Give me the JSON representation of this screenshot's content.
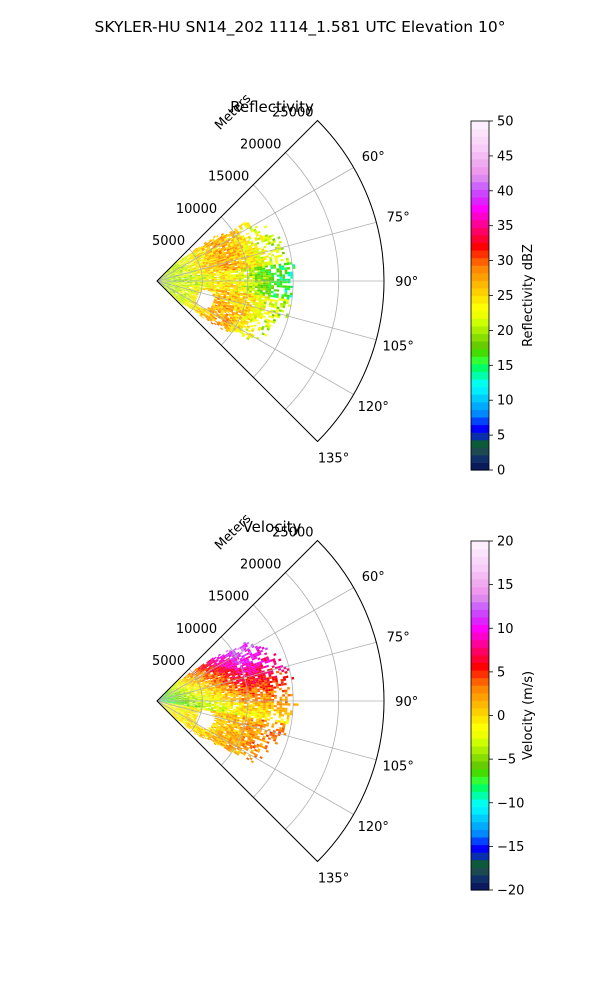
{
  "figure": {
    "title": "SKYLER-HU  SN14_202  1114_1.581 UTC Elevation 10°"
  },
  "chart_data": [
    {
      "type": "polar-sector",
      "title": "Reflectivity",
      "radial_label": "Meters",
      "radial_ticks": [
        5000,
        10000,
        15000,
        20000,
        25000
      ],
      "radial_tick_labels": [
        "5000",
        "10000",
        "15000",
        "20000",
        "25000"
      ],
      "rlim": [
        0,
        25000
      ],
      "azimuth_range_deg": [
        45,
        135
      ],
      "azimuth_ticks_deg": [
        60,
        75,
        90,
        105,
        120,
        135
      ],
      "azimuth_tick_labels": [
        "60°",
        "75°",
        "90°",
        "105°",
        "120°",
        "135°"
      ],
      "grid": true,
      "colorbar": {
        "label": "Reflectivity dBZ",
        "range": [
          0,
          50
        ],
        "ticks": [
          0,
          5,
          10,
          15,
          20,
          25,
          30,
          35,
          40,
          45,
          50
        ],
        "tick_labels": [
          "0",
          "5",
          "10",
          "15",
          "20",
          "25",
          "30",
          "35",
          "40",
          "45",
          "50"
        ],
        "colors": [
          "#0a1a5c",
          "#10306a",
          "#1d4a50",
          "#0b5a3a",
          "#0a2fae",
          "#0000ff",
          "#0044ff",
          "#0088ff",
          "#00aaff",
          "#00ccff",
          "#00eeff",
          "#00ffee",
          "#00ffaa",
          "#00ff66",
          "#33ff33",
          "#44dd00",
          "#66cc00",
          "#88dd00",
          "#aaee00",
          "#ccff00",
          "#eeff00",
          "#ffff00",
          "#ffe800",
          "#ffd000",
          "#ffb800",
          "#ffa000",
          "#ff8800",
          "#ff6000",
          "#ff3000",
          "#ff0000",
          "#ff0033",
          "#ff0066",
          "#ff0099",
          "#ff00cc",
          "#ff00ff",
          "#dd22ff",
          "#cc44ff",
          "#cc66ff",
          "#dd88ee",
          "#ee99ee",
          "#f0aaf0",
          "#f4bbf4",
          "#f8ccf8",
          "#f9d8f9",
          "#fbe4fb",
          "#fdeefd"
        ]
      },
      "data_extent_m": [
        0,
        15500
      ],
      "field_description_values": {
        "near_range_dbz": 20,
        "mid_range_dbz": 27,
        "outer_edge_dbz": 12
      }
    },
    {
      "type": "polar-sector",
      "title": "Velocity",
      "radial_label": "Meters",
      "radial_ticks": [
        5000,
        10000,
        15000,
        20000,
        25000
      ],
      "radial_tick_labels": [
        "5000",
        "10000",
        "15000",
        "20000",
        "25000"
      ],
      "rlim": [
        0,
        25000
      ],
      "azimuth_range_deg": [
        45,
        135
      ],
      "azimuth_ticks_deg": [
        60,
        75,
        90,
        105,
        120,
        135
      ],
      "azimuth_tick_labels": [
        "60°",
        "75°",
        "90°",
        "105°",
        "120°",
        "135°"
      ],
      "grid": true,
      "colorbar": {
        "label": "Velocity (m/s)",
        "range": [
          -20,
          20
        ],
        "ticks": [
          -20,
          -15,
          -10,
          -5,
          0,
          5,
          10,
          15,
          20
        ],
        "tick_labels": [
          "−20",
          "−15",
          "−10",
          "−5",
          "0",
          "5",
          "10",
          "15",
          "20"
        ],
        "colors": [
          "#0a1a5c",
          "#10306a",
          "#1d4a50",
          "#0b5a3a",
          "#0a2fae",
          "#0000ff",
          "#0044ff",
          "#0088ff",
          "#00aaff",
          "#00ccff",
          "#00eeff",
          "#00ffee",
          "#00ffaa",
          "#00ff66",
          "#33ff33",
          "#44dd00",
          "#66cc00",
          "#88dd00",
          "#aaee00",
          "#ccff00",
          "#eeff00",
          "#ffff00",
          "#ffe800",
          "#ffd000",
          "#ffb800",
          "#ffa000",
          "#ff8800",
          "#ff6000",
          "#ff3000",
          "#ff0000",
          "#ff0033",
          "#ff0066",
          "#ff0099",
          "#ff00cc",
          "#ff00ff",
          "#dd22ff",
          "#cc44ff",
          "#cc66ff",
          "#dd88ee",
          "#ee99ee",
          "#f0aaf0",
          "#f4bbf4",
          "#f8ccf8",
          "#f9d8f9",
          "#fbe4fb",
          "#fdeefd"
        ]
      },
      "data_extent_m": [
        0,
        15500
      ],
      "field_description_values": {
        "north_sector_ms": 10,
        "center_ms": 0,
        "south_sector_ms": 3,
        "near_range_ms": -8
      }
    }
  ]
}
